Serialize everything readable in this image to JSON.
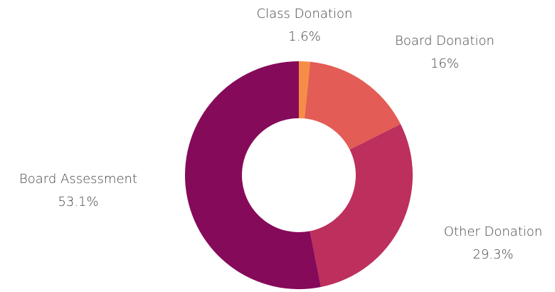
{
  "chart_data": {
    "type": "donut",
    "categories": [
      "Class Donation",
      "Board Donation",
      "Other Donation",
      "Board Assessment"
    ],
    "values": [
      1.6,
      16,
      29.3,
      53.1
    ],
    "value_labels": [
      "1.6%",
      "16%",
      "29.3%",
      "53.1%"
    ],
    "colors": [
      "#f68d45",
      "#e35c55",
      "#bd2f5c",
      "#860a5a"
    ]
  }
}
